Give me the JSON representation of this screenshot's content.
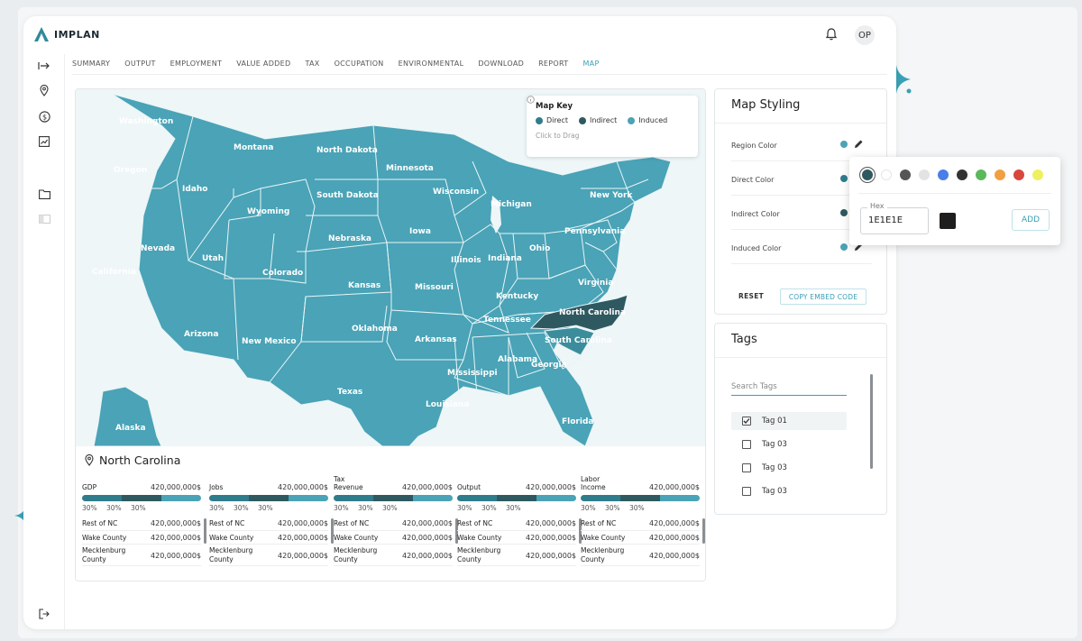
{
  "app": {
    "brand": "IMPLAN",
    "user_initials": "OP",
    "accent": "#3aa0b5"
  },
  "tabs": [
    {
      "label": "SUMMARY"
    },
    {
      "label": "OUTPUT"
    },
    {
      "label": "EMPLOYMENT"
    },
    {
      "label": "VALUE ADDED"
    },
    {
      "label": "TAX"
    },
    {
      "label": "OCCUPATION"
    },
    {
      "label": "ENVIRONMENTAL"
    },
    {
      "label": "DOWNLOAD"
    },
    {
      "label": "REPORT"
    },
    {
      "label": "MAP",
      "active": true
    }
  ],
  "sidebar": {
    "icons": [
      "expand-icon",
      "location-icon",
      "dollar-icon",
      "chart-icon",
      "folder-icon",
      "layout-icon",
      "logout-icon"
    ]
  },
  "map": {
    "region_color": "#4aa3b6",
    "selected_color": "#2f5960",
    "states": {
      "washington": "Washington",
      "oregon": "Oregon",
      "california": "California",
      "nevada": "Nevada",
      "idaho": "Idaho",
      "montana": "Montana",
      "wyoming": "Wyoming",
      "utah": "Utah",
      "arizona": "Arizona",
      "colorado": "Colorado",
      "new_mexico": "New Mexico",
      "north_dakota": "North Dakota",
      "south_dakota": "South Dakota",
      "nebraska": "Nebraska",
      "kansas": "Kansas",
      "oklahoma": "Oklahoma",
      "texas": "Texas",
      "minnesota": "Minnesota",
      "iowa": "Iowa",
      "missouri": "Missouri",
      "arkansas": "Arkansas",
      "louisiana": "Louisiana",
      "wisconsin": "Wisconsin",
      "illinois": "Illinois",
      "michigan": "Michigan",
      "indiana": "Indiana",
      "ohio": "Ohio",
      "kentucky": "Kentucky",
      "tennessee": "Tennessee",
      "mississippi": "Mississippi",
      "alabama": "Alabama",
      "georgia": "Georgia",
      "florida": "Florida",
      "south_carolina": "South Carolina",
      "north_carolina": "North Carolina",
      "virginia": "Virginia",
      "pennsylvania": "Pennsylvania",
      "new_york": "New York",
      "alaska": "Alaska"
    },
    "key": {
      "title": "Map Key",
      "items": [
        {
          "label": "Direct",
          "color": "#2f7d8c"
        },
        {
          "label": "Indirect",
          "color": "#2f5960"
        },
        {
          "label": "Induced",
          "color": "#4aa3b6"
        }
      ],
      "hint": "Click to Drag"
    }
  },
  "region": {
    "name": "North Carolina",
    "metrics": [
      {
        "label": "GDP",
        "value": "420,000,000$",
        "pcts": [
          "30%",
          "30%",
          "30%"
        ],
        "rows": [
          {
            "label": "Rest of NC",
            "value": "420,000,000$"
          },
          {
            "label": "Wake County",
            "value": "420,000,000$"
          },
          {
            "label": "Mecklenburg County",
            "value": "420,000,000$"
          }
        ]
      },
      {
        "label": "Jobs",
        "value": "420,000,000$",
        "pcts": [
          "30%",
          "30%",
          "30%"
        ],
        "rows": [
          {
            "label": "Rest of NC",
            "value": "420,000,000$"
          },
          {
            "label": "Wake County",
            "value": "420,000,000$"
          },
          {
            "label": "Mecklenburg County",
            "value": "420,000,000$"
          }
        ]
      },
      {
        "label": "Tax Revenue",
        "value": "420,000,000$",
        "pcts": [
          "30%",
          "30%",
          "30%"
        ],
        "rows": [
          {
            "label": "Rest of NC",
            "value": "420,000,000$"
          },
          {
            "label": "Wake County",
            "value": "420,000,000$"
          },
          {
            "label": "Mecklenburg County",
            "value": "420,000,000$"
          }
        ]
      },
      {
        "label": "Output",
        "value": "420,000,000$",
        "pcts": [
          "30%",
          "30%",
          "30%"
        ],
        "rows": [
          {
            "label": "Rest of NC",
            "value": "420,000,000$"
          },
          {
            "label": "Wake County",
            "value": "420,000,000$"
          },
          {
            "label": "Mecklenburg County",
            "value": "420,000,000$"
          }
        ]
      },
      {
        "label": "Labor Income",
        "value": "420,000,000$",
        "pcts": [
          "30%",
          "30%",
          "30%"
        ],
        "rows": [
          {
            "label": "Rest of NC",
            "value": "420,000,000$"
          },
          {
            "label": "Wake County",
            "value": "420,000,000$"
          },
          {
            "label": "Mecklenburg County",
            "value": "420,000,000$"
          }
        ]
      }
    ]
  },
  "styling": {
    "title": "Map Styling",
    "rows": [
      {
        "label": "Region Color",
        "color": "#4aa3b6"
      },
      {
        "label": "Direct Color",
        "color": "#2f7d8c"
      },
      {
        "label": "Indirect Color",
        "color": "#2f5960"
      },
      {
        "label": "Induced Color",
        "color": "#4aa3b6"
      }
    ],
    "reset_label": "RESET",
    "embed_label": "COPY EMBED CODE"
  },
  "picker": {
    "swatches": [
      "#2f5960",
      "#ffffff",
      "#555555",
      "#e3e3e3",
      "#4a7de8",
      "#333333",
      "#5cb85c",
      "#f0a040",
      "#d9463e",
      "#eef060"
    ],
    "hex_label": "Hex",
    "hex_value": "1E1E1E",
    "add_label": "ADD"
  },
  "tags": {
    "title": "Tags",
    "search_placeholder": "Search Tags",
    "items": [
      {
        "label": "Tag 01",
        "checked": true
      },
      {
        "label": "Tag 03",
        "checked": false
      },
      {
        "label": "Tag 03",
        "checked": false
      },
      {
        "label": "Tag 03",
        "checked": false
      }
    ]
  }
}
